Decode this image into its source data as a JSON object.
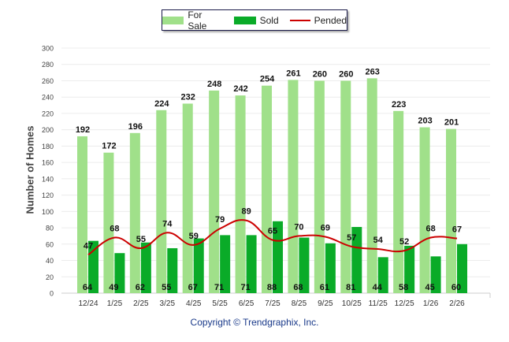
{
  "chart_data": {
    "type": "bar",
    "title": "",
    "xlabel": "",
    "ylabel": "Number of Homes",
    "ylim": [
      0,
      300
    ],
    "yticks": [
      0,
      20,
      40,
      60,
      80,
      100,
      120,
      140,
      160,
      180,
      200,
      220,
      240,
      260,
      280,
      300
    ],
    "grid": true,
    "legend_position": "top-center",
    "categories": [
      "12/24",
      "1/25",
      "2/25",
      "3/25",
      "4/25",
      "5/25",
      "6/25",
      "7/25",
      "8/25",
      "9/25",
      "10/25",
      "11/25",
      "12/25",
      "1/26",
      "2/26"
    ],
    "series": [
      {
        "name": "For Sale",
        "type": "bar",
        "color": "#a0e08a",
        "values": [
          192,
          172,
          196,
          224,
          232,
          248,
          242,
          254,
          261,
          260,
          260,
          263,
          223,
          203,
          201
        ]
      },
      {
        "name": "Sold",
        "type": "bar",
        "color": "#0aab28",
        "values": [
          64,
          49,
          62,
          55,
          67,
          71,
          71,
          88,
          68,
          61,
          81,
          44,
          58,
          45,
          60
        ]
      },
      {
        "name": "Pended",
        "type": "line",
        "color": "#cc0000",
        "values": [
          47,
          68,
          55,
          74,
          59,
          79,
          89,
          65,
          70,
          69,
          57,
          54,
          52,
          68,
          67
        ]
      }
    ]
  },
  "footer": {
    "copyright": "Copyright © Trendgraphix, Inc."
  }
}
